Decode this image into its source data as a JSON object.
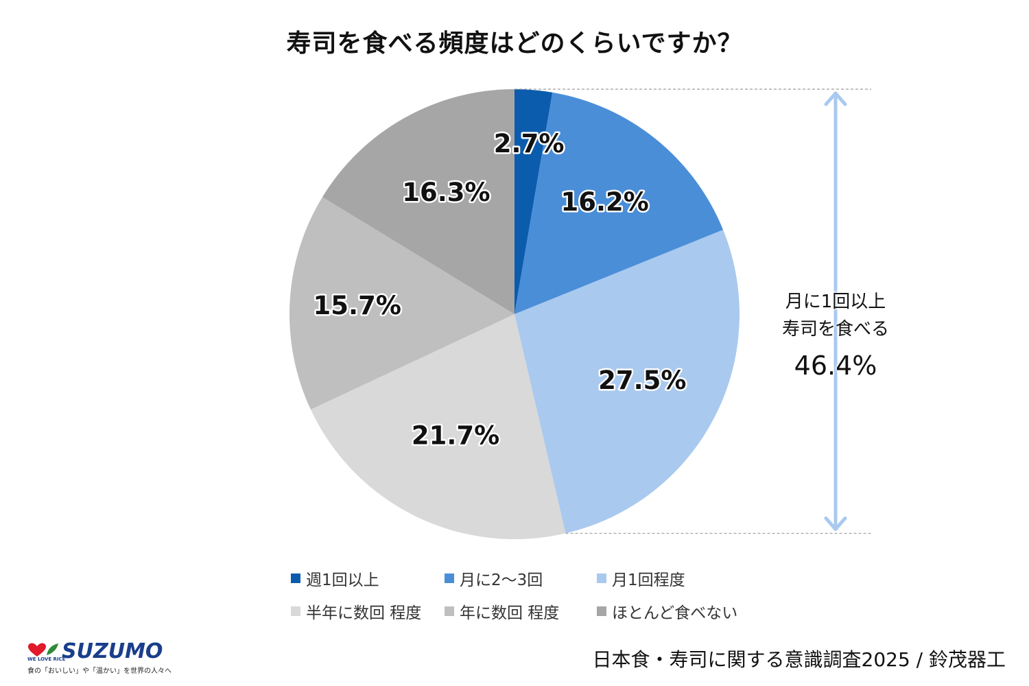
{
  "chart_data": {
    "type": "pie",
    "title": "寿司を食べる頻度はどのくらいですか？",
    "start_angle_deg": 0,
    "direction": "clockwise",
    "slices": [
      {
        "label": "週1回以上",
        "value": 2.7,
        "display": "2.7%",
        "color": "#0b5cad"
      },
      {
        "label": "月に2〜3回",
        "value": 16.2,
        "display": "16.2%",
        "color": "#4a8ed8"
      },
      {
        "label": "月1回程度",
        "value": 27.5,
        "display": "27.5%",
        "color": "#a9c9ef"
      },
      {
        "label": "半年に数回 程度",
        "value": 21.7,
        "display": "21.7%",
        "color": "#d9d9d9"
      },
      {
        "label": "年に数回 程度",
        "value": 15.7,
        "display": "15.7%",
        "color": "#bfbfbf"
      },
      {
        "label": "ほとんど食べない",
        "value": 16.3,
        "display": "16.3%",
        "color": "#a6a6a6"
      }
    ],
    "legend_position": "bottom",
    "annotation": {
      "line1": "月に1回以上",
      "line2": "寿司を食べる",
      "value": "46.4%",
      "arrow_color": "#a9c9ef"
    }
  },
  "logo": {
    "name": "SUZUMO",
    "slogan": "WE LOVE RICE",
    "tagline": "食の「おいしい」や「温かい」を世界の人々へ"
  },
  "source": "日本食・寿司に関する意識調査2025 / 鈴茂器工"
}
